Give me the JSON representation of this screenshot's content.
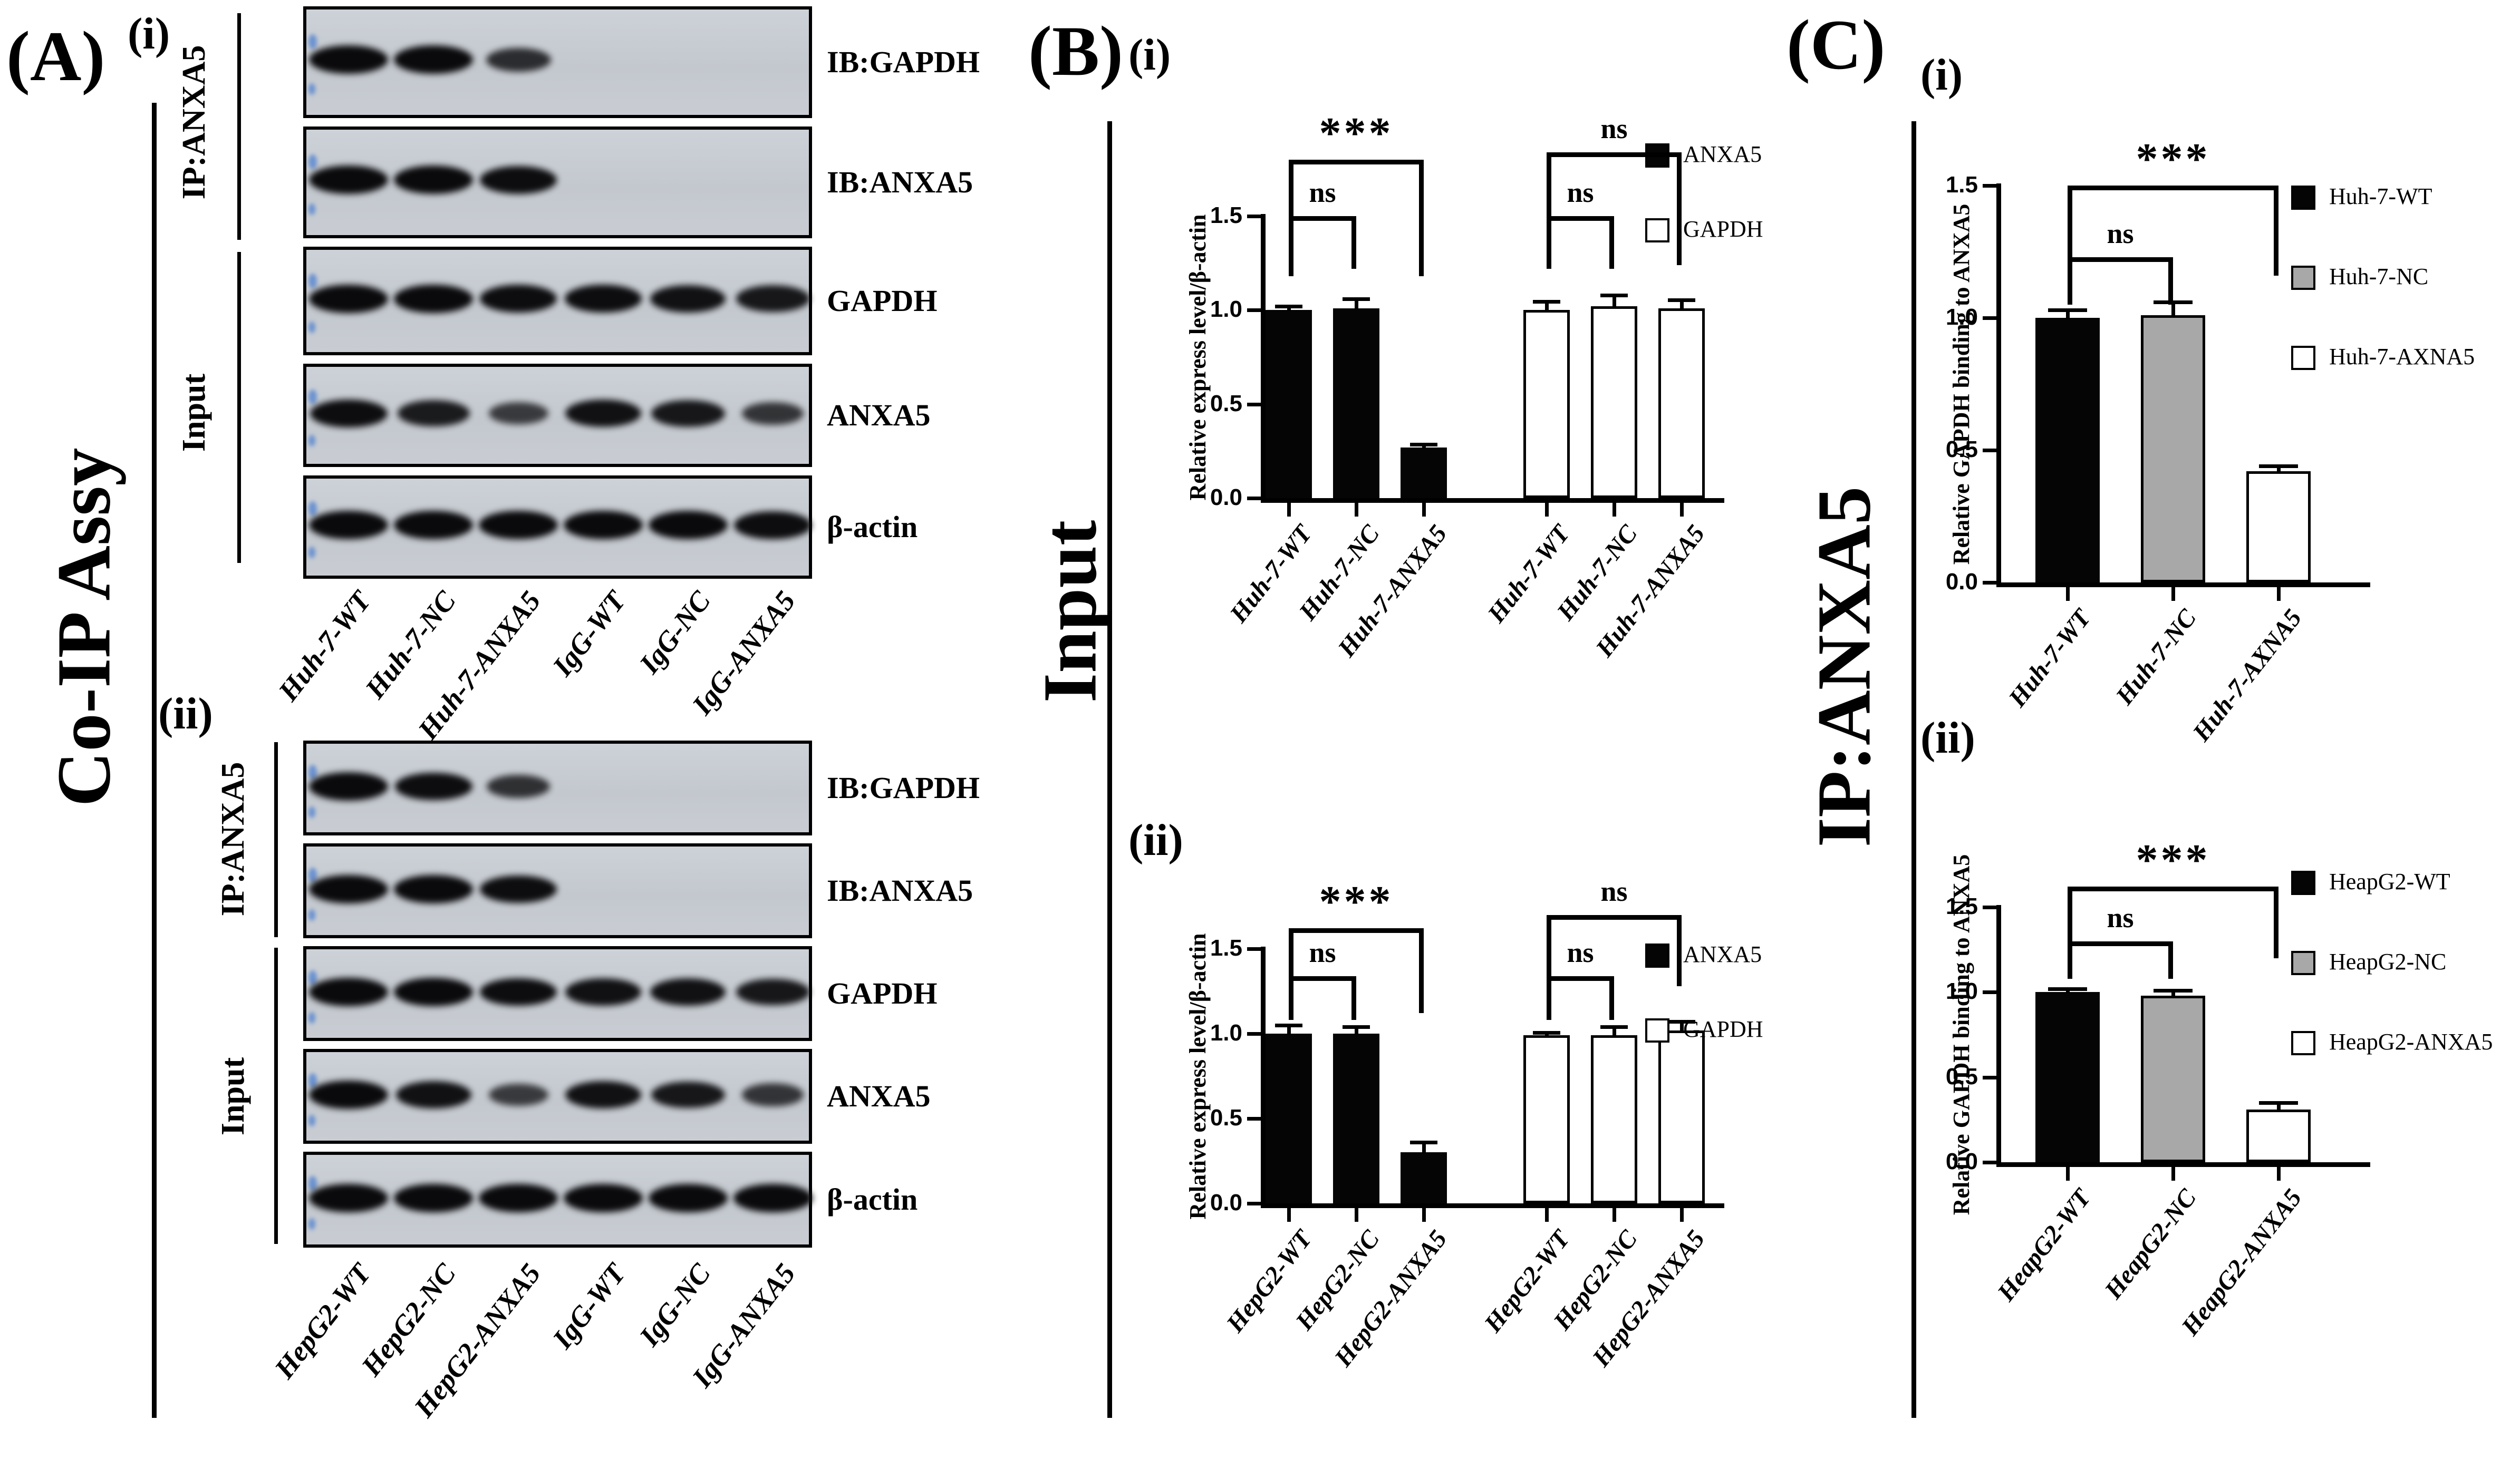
{
  "colors": {
    "black": "#050505",
    "white": "#ffffff",
    "gray": "#a8a8a8",
    "blot_bg": "#c7ccd2",
    "band": "#0a0a0c",
    "marker_blue": "#4d7fd0"
  },
  "panel_a": {
    "label": "(A)",
    "side_label": "Co-IP Assy",
    "blots": [
      {
        "sub_label": "(i)",
        "ip_group_label": "IP:ANXA5",
        "input_group_label": "Input",
        "rows": [
          {
            "label": "IB:GAPDH",
            "bands": [
              1,
              1,
              0.6,
              0,
              0,
              0
            ]
          },
          {
            "label": "IB:ANXA5",
            "bands": [
              1,
              1,
              0.95,
              0,
              0,
              0
            ]
          },
          {
            "label": "GAPDH",
            "bands": [
              1,
              1,
              0.95,
              0.95,
              0.9,
              0.85
            ]
          },
          {
            "label": "ANXA5",
            "bands": [
              0.95,
              0.8,
              0.45,
              0.9,
              0.85,
              0.5
            ]
          },
          {
            "label": "β-actin",
            "bands": [
              1,
              1,
              1,
              1,
              1,
              0.95
            ]
          }
        ],
        "lanes": [
          "Huh-7-WT",
          "Huh-7-NC",
          "Huh-7-ANXA5",
          "IgG-WT",
          "IgG-NC",
          "IgG-ANXA5"
        ]
      },
      {
        "sub_label": "(ii)",
        "ip_group_label": "IP:ANXA5",
        "input_group_label": "Input",
        "rows": [
          {
            "label": "IB:GAPDH",
            "bands": [
              1,
              0.95,
              0.55,
              0,
              0,
              0
            ]
          },
          {
            "label": "IB:ANXA5",
            "bands": [
              1,
              1,
              0.95,
              0,
              0,
              0
            ]
          },
          {
            "label": "GAPDH",
            "bands": [
              1,
              1,
              0.95,
              0.9,
              0.9,
              0.85
            ]
          },
          {
            "label": "ANXA5",
            "bands": [
              1,
              0.9,
              0.45,
              0.9,
              0.85,
              0.5
            ]
          },
          {
            "label": "β-actin",
            "bands": [
              1,
              1,
              1,
              1,
              1,
              1
            ]
          }
        ],
        "lanes": [
          "HepG2-WT",
          "HepG2-NC",
          "HepG2-ANXA5",
          "IgG-WT",
          "IgG-NC",
          "IgG-ANXA5"
        ]
      }
    ]
  },
  "panel_b": {
    "label": "(B)",
    "side_label": "Input"
  },
  "panel_c": {
    "label": "(C)",
    "side_label": "IP:ANXA5"
  },
  "chart_data": [
    {
      "id": "b_i",
      "panel": "B",
      "sub_label": "(i)",
      "type": "bar",
      "title": "",
      "xlabel": "",
      "ylabel": "Relative express level/β-actin",
      "ylim": [
        0,
        1.5
      ],
      "yticks": [
        "0.0",
        "0.5",
        "1.0",
        "1.5"
      ],
      "grid": false,
      "categories": [
        "Huh-7-WT",
        "Huh-7-NC",
        "Huh-7-ANXA5",
        "Huh-7-WT",
        "Huh-7-NC",
        "Huh-7-ANXA5"
      ],
      "bars": [
        {
          "value": 1.0,
          "err": 0.02,
          "fill": "black"
        },
        {
          "value": 1.01,
          "err": 0.05,
          "fill": "black"
        },
        {
          "value": 0.27,
          "err": 0.015,
          "fill": "black"
        },
        {
          "value": 1.0,
          "err": 0.045,
          "fill": "white"
        },
        {
          "value": 1.02,
          "err": 0.06,
          "fill": "white"
        },
        {
          "value": 1.01,
          "err": 0.045,
          "fill": "white"
        }
      ],
      "group_gap_after": 2,
      "legend_position": "right",
      "legend": [
        {
          "label": "ANXA5",
          "fill": "black"
        },
        {
          "label": "GAPDH",
          "fill": "white"
        }
      ],
      "significance": [
        {
          "from": 0,
          "to": 2,
          "label": "***",
          "y": 1.8,
          "drop": 0.62
        },
        {
          "from": 0,
          "to": 1,
          "label": "ns",
          "y": 1.5,
          "drop": 0.28
        },
        {
          "from": 3,
          "to": 5,
          "label": "ns",
          "y": 1.84,
          "drop": 0.6
        },
        {
          "from": 3,
          "to": 4,
          "label": "ns",
          "y": 1.5,
          "drop": 0.28
        }
      ]
    },
    {
      "id": "b_ii",
      "panel": "B",
      "sub_label": "(ii)",
      "type": "bar",
      "title": "",
      "xlabel": "",
      "ylabel": "Relative express level/β-actin",
      "ylim": [
        0,
        1.5
      ],
      "yticks": [
        "0.0",
        "0.5",
        "1.0",
        "1.5"
      ],
      "grid": false,
      "categories": [
        "HepG2-WT",
        "HepG2-NC",
        "HepG2-ANXA5",
        "HepG2-WT",
        "HepG2-NC",
        "HepG2-ANXA5"
      ],
      "bars": [
        {
          "value": 1.0,
          "err": 0.05,
          "fill": "black"
        },
        {
          "value": 1.0,
          "err": 0.04,
          "fill": "black"
        },
        {
          "value": 0.3,
          "err": 0.06,
          "fill": "black"
        },
        {
          "value": 0.99,
          "err": 0.015,
          "fill": "white"
        },
        {
          "value": 0.99,
          "err": 0.05,
          "fill": "white"
        },
        {
          "value": 1.02,
          "err": 0.05,
          "fill": "white"
        }
      ],
      "group_gap_after": 2,
      "legend_position": "right",
      "legend": [
        {
          "label": "ANXA5",
          "fill": "black"
        },
        {
          "label": "GAPDH",
          "fill": "white"
        }
      ],
      "significance": [
        {
          "from": 0,
          "to": 2,
          "label": "***",
          "y": 1.62,
          "drop": 0.5
        },
        {
          "from": 0,
          "to": 1,
          "label": "ns",
          "y": 1.34,
          "drop": 0.26
        },
        {
          "from": 3,
          "to": 5,
          "label": "ns",
          "y": 1.7,
          "drop": 0.42
        },
        {
          "from": 3,
          "to": 4,
          "label": "ns",
          "y": 1.34,
          "drop": 0.26
        }
      ]
    },
    {
      "id": "c_i",
      "panel": "C",
      "sub_label": "(i)",
      "type": "bar",
      "title": "",
      "xlabel": "",
      "ylabel": "Relative GAPDH binding to ANXA5",
      "ylim": [
        0,
        1.5
      ],
      "yticks": [
        "0.0",
        "0.5",
        "1.0",
        "1.5"
      ],
      "grid": false,
      "categories": [
        "Huh-7-WT",
        "Huh-7-NC",
        "Huh-7-AXNA5"
      ],
      "bars": [
        {
          "value": 1.0,
          "err": 0.03,
          "fill": "black"
        },
        {
          "value": 1.01,
          "err": 0.05,
          "fill": "gray"
        },
        {
          "value": 0.42,
          "err": 0.02,
          "fill": "white"
        }
      ],
      "legend_position": "right",
      "legend": [
        {
          "label": "Huh-7-WT",
          "fill": "black"
        },
        {
          "label": "Huh-7-NC",
          "fill": "gray"
        },
        {
          "label": "Huh-7-AXNA5",
          "fill": "white"
        }
      ],
      "significance": [
        {
          "from": 0,
          "to": 2,
          "label": "***",
          "y": 1.5,
          "drop": 0.34
        },
        {
          "from": 0,
          "to": 1,
          "label": "ns",
          "y": 1.23,
          "drop": 0.18
        }
      ]
    },
    {
      "id": "c_ii",
      "panel": "C",
      "sub_label": "(ii)",
      "type": "bar",
      "title": "",
      "xlabel": "",
      "ylabel": "Relative GAPDH binding to ANXA5",
      "ylim": [
        0,
        1.5
      ],
      "yticks": [
        "0.0",
        "0.5",
        "1.0",
        "1.5"
      ],
      "grid": false,
      "categories": [
        "HeapG2-WT",
        "HeapG2-NC",
        "HeapG2-ANXA5"
      ],
      "bars": [
        {
          "value": 1.0,
          "err": 0.02,
          "fill": "black"
        },
        {
          "value": 0.98,
          "err": 0.03,
          "fill": "gray"
        },
        {
          "value": 0.31,
          "err": 0.04,
          "fill": "white"
        }
      ],
      "legend_position": "right",
      "legend": [
        {
          "label": "HeapG2-WT",
          "fill": "black"
        },
        {
          "label": "HeapG2-NC",
          "fill": "gray"
        },
        {
          "label": "HeapG2-ANXA5",
          "fill": "white"
        }
      ],
      "significance": [
        {
          "from": 0,
          "to": 2,
          "label": "***",
          "y": 1.62,
          "drop": 0.42
        },
        {
          "from": 0,
          "to": 1,
          "label": "ns",
          "y": 1.3,
          "drop": 0.22
        }
      ]
    }
  ]
}
